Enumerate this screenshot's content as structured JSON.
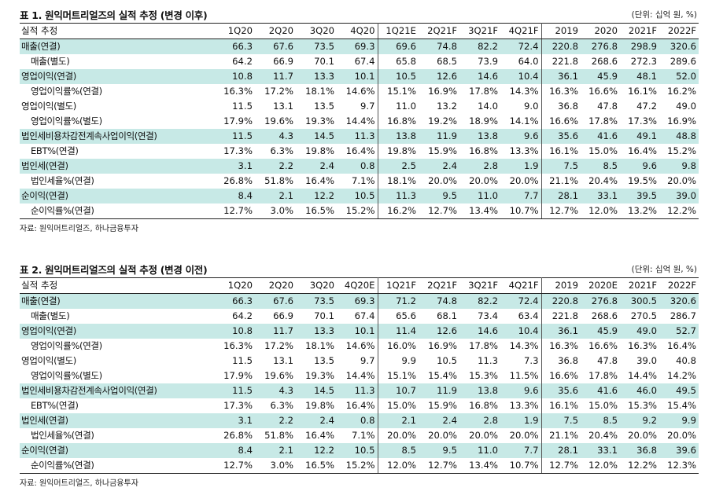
{
  "columns": [
    "1Q20",
    "2Q20",
    "3Q20",
    "4Q20",
    "1Q21E",
    "2Q21F",
    "3Q21F",
    "4Q21F",
    "2019",
    "2020",
    "2021F",
    "2022F"
  ],
  "tables": [
    {
      "title": "표 1. 원익머트리얼즈의 실적 추정 (변경 이후)",
      "unit": "(단위: 십억 원, %)",
      "corner": "실적 추정",
      "columns": [
        "1Q20",
        "2Q20",
        "3Q20",
        "4Q20",
        "1Q21E",
        "2Q21F",
        "3Q21F",
        "4Q21F",
        "2019",
        "2020",
        "2021F",
        "2022F"
      ],
      "rows": [
        {
          "label": "매출(연결)",
          "hl": true,
          "sub": false,
          "values": [
            "66.3",
            "67.6",
            "73.5",
            "69.3",
            "69.6",
            "74.8",
            "82.2",
            "72.4",
            "220.8",
            "276.8",
            "298.9",
            "320.6"
          ]
        },
        {
          "label": "매출(별도)",
          "hl": false,
          "sub": true,
          "values": [
            "64.2",
            "66.9",
            "70.1",
            "67.4",
            "65.8",
            "68.5",
            "73.9",
            "64.0",
            "221.8",
            "268.6",
            "272.3",
            "289.6"
          ]
        },
        {
          "label": "영업이익(연결)",
          "hl": true,
          "sub": false,
          "values": [
            "10.8",
            "11.7",
            "13.3",
            "10.1",
            "10.5",
            "12.6",
            "14.6",
            "10.4",
            "36.1",
            "45.9",
            "48.1",
            "52.0"
          ]
        },
        {
          "label": "영업이익률%(연결)",
          "hl": false,
          "sub": true,
          "values": [
            "16.3%",
            "17.2%",
            "18.1%",
            "14.6%",
            "15.1%",
            "16.9%",
            "17.8%",
            "14.3%",
            "16.3%",
            "16.6%",
            "16.1%",
            "16.2%"
          ]
        },
        {
          "label": "영업이익(별도)",
          "hl": false,
          "sub": false,
          "values": [
            "11.5",
            "13.1",
            "13.5",
            "9.7",
            "11.0",
            "13.2",
            "14.0",
            "9.0",
            "36.8",
            "47.8",
            "47.2",
            "49.0"
          ]
        },
        {
          "label": "영업이익률%(별도)",
          "hl": false,
          "sub": true,
          "values": [
            "17.9%",
            "19.6%",
            "19.3%",
            "14.4%",
            "16.8%",
            "19.2%",
            "18.9%",
            "14.1%",
            "16.6%",
            "17.8%",
            "17.3%",
            "16.9%"
          ]
        },
        {
          "label": "법인세비용차감전계속사업이익(연결)",
          "hl": true,
          "sub": false,
          "values": [
            "11.5",
            "4.3",
            "14.5",
            "11.3",
            "13.8",
            "11.9",
            "13.8",
            "9.6",
            "35.6",
            "41.6",
            "49.1",
            "48.8"
          ]
        },
        {
          "label": "EBT%(연결)",
          "hl": false,
          "sub": true,
          "values": [
            "17.3%",
            "6.3%",
            "19.8%",
            "16.4%",
            "19.8%",
            "15.9%",
            "16.8%",
            "13.3%",
            "16.1%",
            "15.0%",
            "16.4%",
            "15.2%"
          ]
        },
        {
          "label": "법인세(연결)",
          "hl": true,
          "sub": false,
          "values": [
            "3.1",
            "2.2",
            "2.4",
            "0.8",
            "2.5",
            "2.4",
            "2.8",
            "1.9",
            "7.5",
            "8.5",
            "9.6",
            "9.8"
          ]
        },
        {
          "label": "법인세율%(연결)",
          "hl": false,
          "sub": true,
          "values": [
            "26.8%",
            "51.8%",
            "16.4%",
            "7.1%",
            "18.1%",
            "20.0%",
            "20.0%",
            "20.0%",
            "21.1%",
            "20.4%",
            "19.5%",
            "20.0%"
          ]
        },
        {
          "label": "순이익(연결)",
          "hl": true,
          "sub": false,
          "values": [
            "8.4",
            "2.1",
            "12.2",
            "10.5",
            "11.3",
            "9.5",
            "11.0",
            "7.7",
            "28.1",
            "33.1",
            "39.5",
            "39.0"
          ]
        },
        {
          "label": "순이익률%(연결)",
          "hl": false,
          "sub": true,
          "values": [
            "12.7%",
            "3.0%",
            "16.5%",
            "15.2%",
            "16.2%",
            "12.7%",
            "13.4%",
            "10.7%",
            "12.7%",
            "12.0%",
            "13.2%",
            "12.2%"
          ]
        }
      ],
      "source": "자료: 원익머트리얼즈, 하나금융투자"
    },
    {
      "title": "표 2. 원익머트리얼즈의 실적 추정 (변경 이전)",
      "unit": "(단위: 십억 원, %)",
      "corner": "실적 추정",
      "columns": [
        "1Q20",
        "2Q20",
        "3Q20",
        "4Q20E",
        "1Q21F",
        "2Q21F",
        "3Q21F",
        "4Q21F",
        "2019",
        "2020E",
        "2021F",
        "2022F"
      ],
      "rows": [
        {
          "label": "매출(연결)",
          "hl": true,
          "sub": false,
          "values": [
            "66.3",
            "67.6",
            "73.5",
            "69.3",
            "71.2",
            "74.8",
            "82.2",
            "72.4",
            "220.8",
            "276.8",
            "300.5",
            "320.6"
          ]
        },
        {
          "label": "매출(별도)",
          "hl": false,
          "sub": true,
          "values": [
            "64.2",
            "66.9",
            "70.1",
            "67.4",
            "65.6",
            "68.1",
            "73.4",
            "63.4",
            "221.8",
            "268.6",
            "270.5",
            "286.7"
          ]
        },
        {
          "label": "영업이익(연결)",
          "hl": true,
          "sub": false,
          "values": [
            "10.8",
            "11.7",
            "13.3",
            "10.1",
            "11.4",
            "12.6",
            "14.6",
            "10.4",
            "36.1",
            "45.9",
            "49.0",
            "52.7"
          ]
        },
        {
          "label": "영업이익률%(연결)",
          "hl": false,
          "sub": true,
          "values": [
            "16.3%",
            "17.2%",
            "18.1%",
            "14.6%",
            "16.0%",
            "16.9%",
            "17.8%",
            "14.3%",
            "16.3%",
            "16.6%",
            "16.3%",
            "16.4%"
          ]
        },
        {
          "label": "영업이익(별도)",
          "hl": false,
          "sub": false,
          "values": [
            "11.5",
            "13.1",
            "13.5",
            "9.7",
            "9.9",
            "10.5",
            "11.3",
            "7.3",
            "36.8",
            "47.8",
            "39.0",
            "40.8"
          ]
        },
        {
          "label": "영업이익률%(별도)",
          "hl": false,
          "sub": true,
          "values": [
            "17.9%",
            "19.6%",
            "19.3%",
            "14.4%",
            "15.1%",
            "15.4%",
            "15.3%",
            "11.5%",
            "16.6%",
            "17.8%",
            "14.4%",
            "14.2%"
          ]
        },
        {
          "label": "법인세비용차감전계속사업이익(연결)",
          "hl": true,
          "sub": false,
          "values": [
            "11.5",
            "4.3",
            "14.5",
            "11.3",
            "10.7",
            "11.9",
            "13.8",
            "9.6",
            "35.6",
            "41.6",
            "46.0",
            "49.5"
          ]
        },
        {
          "label": "EBT%(연결)",
          "hl": false,
          "sub": true,
          "values": [
            "17.3%",
            "6.3%",
            "19.8%",
            "16.4%",
            "15.0%",
            "15.9%",
            "16.8%",
            "13.3%",
            "16.1%",
            "15.0%",
            "15.3%",
            "15.4%"
          ]
        },
        {
          "label": "법인세(연결)",
          "hl": true,
          "sub": false,
          "values": [
            "3.1",
            "2.2",
            "2.4",
            "0.8",
            "2.1",
            "2.4",
            "2.8",
            "1.9",
            "7.5",
            "8.5",
            "9.2",
            "9.9"
          ]
        },
        {
          "label": "법인세율%(연결)",
          "hl": false,
          "sub": true,
          "values": [
            "26.8%",
            "51.8%",
            "16.4%",
            "7.1%",
            "20.0%",
            "20.0%",
            "20.0%",
            "20.0%",
            "21.1%",
            "20.4%",
            "20.0%",
            "20.0%"
          ]
        },
        {
          "label": "순이익(연결)",
          "hl": true,
          "sub": false,
          "values": [
            "8.4",
            "2.1",
            "12.2",
            "10.5",
            "8.5",
            "9.5",
            "11.0",
            "7.7",
            "28.1",
            "33.1",
            "36.8",
            "39.6"
          ]
        },
        {
          "label": "순이익률%(연결)",
          "hl": false,
          "sub": true,
          "values": [
            "12.7%",
            "3.0%",
            "16.5%",
            "15.2%",
            "12.0%",
            "12.7%",
            "13.4%",
            "10.7%",
            "12.7%",
            "12.0%",
            "12.2%",
            "12.3%"
          ]
        }
      ],
      "source": "자료: 원익머트리얼즈, 하나금융투자"
    }
  ],
  "colors": {
    "highlight_row": "#c7e9e6",
    "rule": "#222222"
  }
}
